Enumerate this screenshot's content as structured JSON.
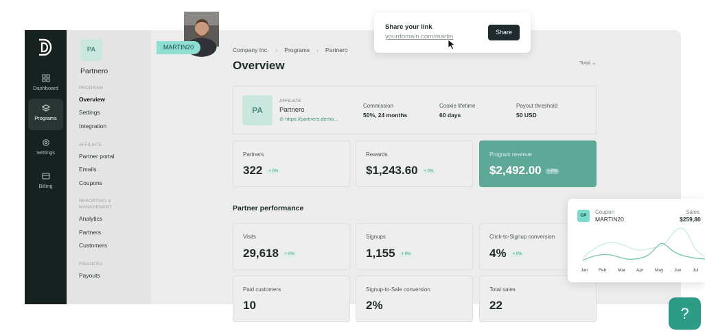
{
  "rail": {
    "items": [
      {
        "label": "Dashboard",
        "icon": "grid-icon"
      },
      {
        "label": "Programs",
        "icon": "layers-icon"
      },
      {
        "label": "Settings",
        "icon": "gear-icon"
      },
      {
        "label": "Billing",
        "icon": "billing-icon"
      }
    ]
  },
  "sidebar": {
    "badge": "PA",
    "name": "Partnero",
    "groups": [
      {
        "title": "PROGRAM",
        "items": [
          "Overview",
          "Settings",
          "Integration"
        ]
      },
      {
        "title": "AFFILIATE",
        "items": [
          "Partner portal",
          "Emails",
          "Coupons"
        ]
      },
      {
        "title": "REPORTING & MANAGEMENT",
        "items": [
          "Analytics",
          "Partners",
          "Customers"
        ]
      },
      {
        "title": "FINANCES",
        "items": [
          "Payouts"
        ]
      }
    ]
  },
  "header": {
    "breadcrumbs": [
      "Company Inc.",
      "Programs",
      "Partnero"
    ],
    "title": "Overview",
    "filter": "Total"
  },
  "affiliate": {
    "badge": "PA",
    "label": "AFFILIATE",
    "name": "Partnero",
    "url": "https://partners.demo...",
    "commission_label": "Commission",
    "commission": "50%, 24 months",
    "cookie_label": "Cookie lifetime",
    "cookie": "60 days",
    "payout_label": "Payout threshold",
    "payout": "50 USD"
  },
  "stats": [
    {
      "label": "Partners",
      "value": "322",
      "change": "+ 0%"
    },
    {
      "label": "Rewards",
      "value": "$1,243.60",
      "change": "+ 0%"
    },
    {
      "label": "Program revenue",
      "value": "$2,492.00",
      "change": "+ 0%"
    }
  ],
  "performance": {
    "title": "Partner performance",
    "cards": [
      {
        "label": "Visits",
        "value": "29,618",
        "change": "+ 0%"
      },
      {
        "label": "Signups",
        "value": "1,155",
        "change": "+ 0%"
      },
      {
        "label": "Click-to-Signup conversion",
        "value": "4%",
        "change": "+ 0%"
      },
      {
        "label": "Paid customers",
        "value": "10"
      },
      {
        "label": "Signup-to-Sale conversion",
        "value": "2%"
      },
      {
        "label": "Total sales",
        "value": "22"
      }
    ]
  },
  "partner_badge": {
    "code": "MARTIN20"
  },
  "share": {
    "title": "Share your link",
    "url": "yourdomain.com/martin",
    "button": "Share"
  },
  "coupon": {
    "badge": "CP",
    "label": "Coupon",
    "code": "MARTIN20",
    "sales_label": "Sales",
    "sales": "$259,80",
    "months": [
      "Jan",
      "Feb",
      "Mar",
      "Apr",
      "May",
      "Jun",
      "Jul"
    ]
  },
  "help": {
    "icon": "?"
  },
  "colors": {
    "accent": "#5ea898",
    "rail": "#172220",
    "help": "#2c9c86"
  }
}
